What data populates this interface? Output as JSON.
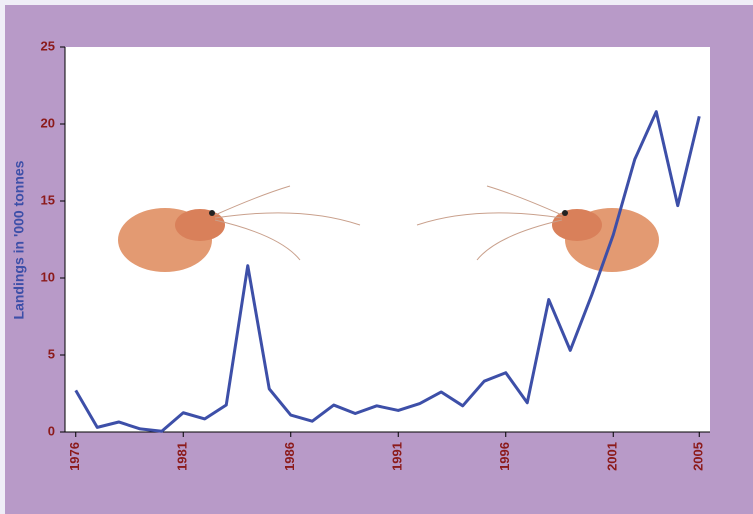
{
  "chart_data": {
    "type": "line",
    "ylabel": "Landings in '000 tonnes",
    "x": [
      1976,
      1977,
      1978,
      1979,
      1980,
      1981,
      1982,
      1983,
      1984,
      1985,
      1986,
      1987,
      1988,
      1989,
      1990,
      1991,
      1992,
      1993,
      1994,
      1995,
      1996,
      1997,
      1998,
      1999,
      2000,
      2001,
      2002,
      2003,
      2004,
      2005
    ],
    "series": [
      {
        "name": "Landings",
        "color": "#3d4fa8",
        "values": [
          2.7,
          0.3,
          0.65,
          0.2,
          0.05,
          1.25,
          0.85,
          1.75,
          10.8,
          2.8,
          1.1,
          0.7,
          1.75,
          1.2,
          1.7,
          1.4,
          1.85,
          2.6,
          1.7,
          3.3,
          3.85,
          1.9,
          8.6,
          5.3,
          8.9,
          12.8,
          17.7,
          20.8,
          14.7,
          20.5
        ]
      }
    ],
    "xlim": [
      1975.5,
      2005.5
    ],
    "xticks": [
      1976,
      1981,
      1986,
      1991,
      1996,
      2001,
      2005
    ],
    "ylim": [
      0,
      25
    ],
    "yticks": [
      0,
      5,
      10,
      15,
      20,
      25
    ]
  }
}
